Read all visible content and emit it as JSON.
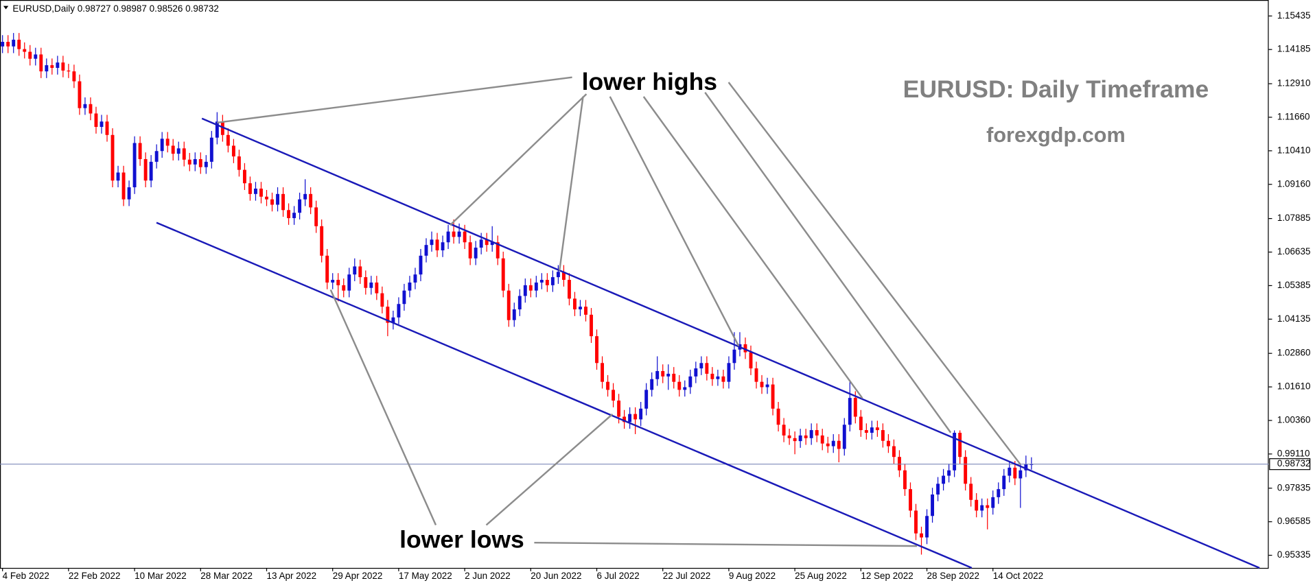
{
  "chart_data": {
    "type": "candlestick",
    "symbol": "EURUSD,Daily",
    "title": "EURUSD: Daily Timeframe",
    "subtitle": "forexgdp.com",
    "annotations": [
      "lower highs",
      "lower lows"
    ],
    "up_color": "#1010d0",
    "down_color": "#ff0000",
    "grid": false,
    "ylim": [
      0.94865,
      1.1603
    ],
    "yticks": [
      1.15435,
      1.14185,
      {
        "value": 1.1291,
        "label": "1.12910"
      },
      {
        "value": 1.1166,
        "label": "1.11660"
      },
      {
        "value": 1.1041,
        "label": "1.10410"
      },
      {
        "value": 1.0916,
        "label": "1.09160"
      },
      1.07885,
      1.06635,
      1.05385,
      1.04135,
      {
        "value": 1.0286,
        "label": "1.02860"
      },
      {
        "value": 1.0161,
        "label": "1.01610"
      },
      {
        "value": 1.0036,
        "label": "1.00360"
      },
      {
        "value": 0.9911,
        "label": "0.99110"
      },
      0.97835,
      0.96585,
      0.95335
    ],
    "categories": [
      "4 Feb 2022",
      null,
      null,
      null,
      null,
      null,
      null,
      null,
      null,
      null,
      null,
      null,
      "22 Feb 2022",
      null,
      null,
      null,
      null,
      null,
      null,
      null,
      null,
      null,
      null,
      null,
      "10 Mar 2022",
      null,
      null,
      null,
      null,
      null,
      null,
      null,
      null,
      null,
      null,
      null,
      "28 Mar 2022",
      null,
      null,
      null,
      null,
      null,
      null,
      null,
      null,
      null,
      null,
      null,
      "13 Apr 2022",
      null,
      null,
      null,
      null,
      null,
      null,
      null,
      null,
      null,
      null,
      null,
      "29 Apr 2022",
      null,
      null,
      null,
      null,
      null,
      null,
      null,
      null,
      null,
      null,
      null,
      "17 May 2022",
      null,
      null,
      null,
      null,
      null,
      null,
      null,
      null,
      null,
      null,
      null,
      "2 Jun 2022",
      null,
      null,
      null,
      null,
      null,
      null,
      null,
      null,
      null,
      null,
      null,
      "20 Jun 2022",
      null,
      null,
      null,
      null,
      null,
      null,
      null,
      null,
      null,
      null,
      null,
      "6 Jul 2022",
      null,
      null,
      null,
      null,
      null,
      null,
      null,
      null,
      null,
      null,
      null,
      "22 Jul 2022",
      null,
      null,
      null,
      null,
      null,
      null,
      null,
      null,
      null,
      null,
      null,
      "9 Aug 2022",
      null,
      null,
      null,
      null,
      null,
      null,
      null,
      null,
      null,
      null,
      null,
      "25 Aug 2022",
      null,
      null,
      null,
      null,
      null,
      null,
      null,
      null,
      null,
      null,
      null,
      "12 Sep 2022",
      null,
      null,
      null,
      null,
      null,
      null,
      null,
      null,
      null,
      null,
      null,
      "28 Sep 2022",
      null,
      null,
      null,
      null,
      null,
      null,
      null,
      null,
      null,
      null,
      null,
      "14 Oct 2022",
      null,
      null,
      null,
      null,
      null,
      null,
      null
    ],
    "candles": [
      [
        1.143,
        1.1472,
        1.1405,
        1.1447
      ],
      [
        1.1447,
        1.1472,
        1.1405,
        1.143
      ],
      [
        1.143,
        1.148,
        1.1405,
        1.1455
      ],
      [
        1.1455,
        1.148,
        1.1395,
        1.142
      ],
      [
        1.142,
        1.1445,
        1.1385,
        1.141
      ],
      [
        1.141,
        1.1435,
        1.1359,
        1.1384
      ],
      [
        1.1384,
        1.1425,
        1.1359,
        1.14
      ],
      [
        1.14,
        1.1425,
        1.1312,
        1.1337
      ],
      [
        1.1337,
        1.1385,
        1.1312,
        1.136
      ],
      [
        1.136,
        1.1385,
        1.1325,
        1.135
      ],
      [
        1.135,
        1.1395,
        1.1325,
        1.137
      ],
      [
        1.137,
        1.1395,
        1.1315,
        1.134
      ],
      [
        1.134,
        1.1365,
        1.1312,
        1.1337
      ],
      [
        1.1337,
        1.1362,
        1.1275,
        1.13
      ],
      [
        1.13,
        1.1325,
        1.1175,
        1.12
      ],
      [
        1.12,
        1.124,
        1.1175,
        1.1215
      ],
      [
        1.1215,
        1.124,
        1.1155,
        1.118
      ],
      [
        1.118,
        1.1205,
        1.1105,
        1.113
      ],
      [
        1.113,
        1.1175,
        1.1105,
        1.115
      ],
      [
        1.115,
        1.1175,
        1.1075,
        1.11
      ],
      [
        1.11,
        1.1125,
        1.0905,
        1.093
      ],
      [
        1.093,
        1.0985,
        1.0905,
        1.096
      ],
      [
        1.096,
        1.0985,
        1.0835,
        1.086
      ],
      [
        1.086,
        1.093,
        1.0835,
        1.0905
      ],
      [
        1.0905,
        1.1095,
        1.088,
        1.107
      ],
      [
        1.107,
        1.1095,
        1.0985,
        1.101
      ],
      [
        1.101,
        1.1035,
        1.0905,
        1.093
      ],
      [
        1.093,
        1.1025,
        1.0905,
        1.1
      ],
      [
        1.1,
        1.1065,
        1.0975,
        1.104
      ],
      [
        1.104,
        1.1111,
        1.1015,
        1.1086
      ],
      [
        1.1086,
        1.1111,
        1.1035,
        1.106
      ],
      [
        1.106,
        1.1085,
        1.1005,
        1.103
      ],
      [
        1.103,
        1.1075,
        1.1005,
        1.105
      ],
      [
        1.105,
        1.1075,
        1.0983,
        1.1008
      ],
      [
        1.1008,
        1.1033,
        1.0965,
        1.099
      ],
      [
        1.099,
        1.1035,
        1.0965,
        1.101
      ],
      [
        1.101,
        1.1035,
        1.0955,
        1.098
      ],
      [
        1.098,
        1.1025,
        1.0955,
        1.1
      ],
      [
        1.1,
        1.1115,
        1.0975,
        1.109
      ],
      [
        1.109,
        1.1185,
        1.1065,
        1.115
      ],
      [
        1.115,
        1.1175,
        1.1075,
        1.11
      ],
      [
        1.11,
        1.1125,
        1.1035,
        1.106
      ],
      [
        1.106,
        1.1085,
        1.0995,
        1.102
      ],
      [
        1.102,
        1.1045,
        1.0945,
        1.097
      ],
      [
        1.097,
        1.0995,
        1.0895,
        1.092
      ],
      [
        1.092,
        1.0945,
        1.0855,
        1.088
      ],
      [
        1.088,
        1.0925,
        1.0855,
        1.09
      ],
      [
        1.09,
        1.0925,
        1.0845,
        1.087
      ],
      [
        1.087,
        1.0895,
        1.0835,
        1.086
      ],
      [
        1.086,
        1.0885,
        1.0815,
        1.084
      ],
      [
        1.084,
        1.0905,
        1.0815,
        1.088
      ],
      [
        1.088,
        1.0905,
        1.0795,
        1.082
      ],
      [
        1.082,
        1.0845,
        1.0765,
        1.079
      ],
      [
        1.079,
        1.0835,
        1.0765,
        1.081
      ],
      [
        1.081,
        1.0885,
        1.0785,
        1.086
      ],
      [
        1.086,
        1.0935,
        1.0835,
        1.088
      ],
      [
        1.088,
        1.0905,
        1.0805,
        1.083
      ],
      [
        1.083,
        1.0855,
        1.0735,
        1.076
      ],
      [
        1.076,
        1.0785,
        1.0625,
        1.065
      ],
      [
        1.065,
        1.0675,
        1.0525,
        1.055
      ],
      [
        1.055,
        1.0585,
        1.0525,
        1.056
      ],
      [
        1.056,
        1.0585,
        1.048,
        1.054
      ],
      [
        1.054,
        1.0565,
        1.0495,
        1.052
      ],
      [
        1.052,
        1.0605,
        1.0495,
        1.058
      ],
      [
        1.058,
        1.064,
        1.0555,
        1.061
      ],
      [
        1.061,
        1.0635,
        1.0545,
        1.057
      ],
      [
        1.057,
        1.0595,
        1.0505,
        1.053
      ],
      [
        1.053,
        1.0575,
        1.0505,
        1.055
      ],
      [
        1.055,
        1.0575,
        1.0485,
        1.051
      ],
      [
        1.051,
        1.0535,
        1.0435,
        1.046
      ],
      [
        1.046,
        1.0485,
        1.035,
        1.04
      ],
      [
        1.04,
        1.0445,
        1.0375,
        1.042
      ],
      [
        1.042,
        1.0495,
        1.0395,
        1.047
      ],
      [
        1.047,
        1.0545,
        1.0445,
        1.052
      ],
      [
        1.052,
        1.0575,
        1.0495,
        1.055
      ],
      [
        1.055,
        1.0605,
        1.0525,
        1.058
      ],
      [
        1.058,
        1.0675,
        1.0555,
        1.065
      ],
      [
        1.065,
        1.0715,
        1.0625,
        1.069
      ],
      [
        1.069,
        1.074,
        1.0665,
        1.071
      ],
      [
        1.071,
        1.0735,
        1.0645,
        1.067
      ],
      [
        1.067,
        1.0725,
        1.0645,
        1.07
      ],
      [
        1.07,
        1.0765,
        1.0675,
        1.074
      ],
      [
        1.074,
        1.0785,
        1.0695,
        1.072
      ],
      [
        1.072,
        1.077,
        1.0695,
        1.074
      ],
      [
        1.074,
        1.0765,
        1.0675,
        1.07
      ],
      [
        1.07,
        1.0725,
        1.0615,
        1.064
      ],
      [
        1.064,
        1.0705,
        1.0615,
        1.068
      ],
      [
        1.068,
        1.0735,
        1.0655,
        1.071
      ],
      [
        1.071,
        1.0735,
        1.0665,
        1.069
      ],
      [
        1.069,
        1.076,
        1.0665,
        1.07
      ],
      [
        1.07,
        1.0725,
        1.0615,
        1.064
      ],
      [
        1.064,
        1.0665,
        1.0495,
        1.052
      ],
      [
        1.052,
        1.0545,
        1.0385,
        1.041
      ],
      [
        1.041,
        1.0475,
        1.0385,
        1.045
      ],
      [
        1.045,
        1.0525,
        1.0425,
        1.05
      ],
      [
        1.05,
        1.0565,
        1.0475,
        1.054
      ],
      [
        1.054,
        1.0565,
        1.0495,
        1.052
      ],
      [
        1.052,
        1.0575,
        1.0495,
        1.055
      ],
      [
        1.055,
        1.0585,
        1.0525,
        1.056
      ],
      [
        1.056,
        1.0585,
        1.0515,
        1.054
      ],
      [
        1.054,
        1.0595,
        1.0515,
        1.057
      ],
      [
        1.057,
        1.0615,
        1.0545,
        1.059
      ],
      [
        1.059,
        1.0615,
        1.0535,
        1.056
      ],
      [
        1.056,
        1.0585,
        1.0465,
        1.049
      ],
      [
        1.049,
        1.0515,
        1.0425,
        1.045
      ],
      [
        1.045,
        1.0485,
        1.0425,
        1.046
      ],
      [
        1.046,
        1.0485,
        1.0405,
        1.043
      ],
      [
        1.043,
        1.0455,
        1.0325,
        1.035
      ],
      [
        1.035,
        1.0375,
        1.0225,
        1.025
      ],
      [
        1.025,
        1.0275,
        1.0155,
        1.018
      ],
      [
        1.018,
        1.0205,
        1.0125,
        1.015
      ],
      [
        1.015,
        1.0175,
        1.0085,
        1.011
      ],
      [
        1.011,
        1.0135,
        1.0025,
        1.005
      ],
      [
        1.005,
        1.0075,
        1.0005,
        1.003
      ],
      [
        1.003,
        1.0085,
        1.0005,
        1.006
      ],
      [
        1.006,
        1.0085,
        0.9985,
        1.004
      ],
      [
        1.004,
        1.0105,
        1.0015,
        1.008
      ],
      [
        1.008,
        1.0175,
        1.0055,
        1.015
      ],
      [
        1.015,
        1.0215,
        1.0125,
        1.019
      ],
      [
        1.019,
        1.0275,
        1.0165,
        1.022
      ],
      [
        1.022,
        1.0245,
        1.0175,
        1.02
      ],
      [
        1.02,
        1.0245,
        1.015,
        1.021
      ],
      [
        1.021,
        1.0235,
        1.0155,
        1.018
      ],
      [
        1.018,
        1.0205,
        1.0125,
        1.015
      ],
      [
        1.015,
        1.0185,
        1.0125,
        1.016
      ],
      [
        1.016,
        1.0225,
        1.0135,
        1.02
      ],
      [
        1.02,
        1.0255,
        1.0175,
        1.023
      ],
      [
        1.023,
        1.0275,
        1.0205,
        1.025
      ],
      [
        1.025,
        1.0275,
        1.0185,
        1.021
      ],
      [
        1.021,
        1.0235,
        1.0165,
        1.019
      ],
      [
        1.019,
        1.0225,
        1.0165,
        1.02
      ],
      [
        1.02,
        1.0225,
        1.0155,
        1.018
      ],
      [
        1.018,
        1.0275,
        1.0155,
        1.025
      ],
      [
        1.025,
        1.0365,
        1.0225,
        1.03
      ],
      [
        1.03,
        1.0365,
        1.0275,
        1.032
      ],
      [
        1.032,
        1.0345,
        1.0265,
        1.029
      ],
      [
        1.029,
        1.0315,
        1.0205,
        1.023
      ],
      [
        1.023,
        1.0255,
        1.0155,
        1.018
      ],
      [
        1.018,
        1.0205,
        1.0135,
        1.016
      ],
      [
        1.016,
        1.0195,
        1.0135,
        1.017
      ],
      [
        1.017,
        1.0195,
        1.0055,
        1.008
      ],
      [
        1.008,
        1.0105,
        0.9995,
        1.002
      ],
      [
        1.002,
        1.0045,
        0.9955,
        0.998
      ],
      [
        0.998,
        1.0005,
        0.9945,
        0.997
      ],
      [
        0.997,
        0.9995,
        0.991,
        0.9959
      ],
      [
        0.9959,
        1.0005,
        0.9934,
        0.998
      ],
      [
        0.998,
        1.0005,
        0.9945,
        0.997
      ],
      [
        0.997,
        1.0025,
        0.9945,
        1.0
      ],
      [
        1.0,
        1.0025,
        0.9955,
        0.998
      ],
      [
        0.998,
        1.0005,
        0.9925,
        0.995
      ],
      [
        0.995,
        0.9975,
        0.9915,
        0.994
      ],
      [
        0.994,
        0.9985,
        0.9915,
        0.996
      ],
      [
        0.996,
        0.9985,
        0.988,
        0.993
      ],
      [
        0.993,
        1.0045,
        0.9905,
        1.002
      ],
      [
        1.002,
        1.0185,
        0.9995,
        1.012
      ],
      [
        1.012,
        1.0145,
        1.0025,
        1.005
      ],
      [
        1.005,
        1.0075,
        0.9975,
        1.0
      ],
      [
        1.0,
        1.0025,
        0.9965,
        0.999
      ],
      [
        0.999,
        1.0035,
        0.9965,
        1.001
      ],
      [
        1.001,
        1.0035,
        0.9975,
        1.0
      ],
      [
        1.0,
        1.0025,
        0.9935,
        0.996
      ],
      [
        0.996,
        0.9985,
        0.9915,
        0.994
      ],
      [
        0.994,
        0.9965,
        0.9875,
        0.99
      ],
      [
        0.99,
        0.9925,
        0.9825,
        0.985
      ],
      [
        0.985,
        0.9875,
        0.9755,
        0.978
      ],
      [
        0.978,
        0.9805,
        0.9675,
        0.97
      ],
      [
        0.97,
        0.9725,
        0.959,
        0.9615
      ],
      [
        0.9615,
        0.964,
        0.9536,
        0.96
      ],
      [
        0.96,
        0.9705,
        0.9575,
        0.968
      ],
      [
        0.968,
        0.9785,
        0.9655,
        0.976
      ],
      [
        0.976,
        0.9825,
        0.9735,
        0.98
      ],
      [
        0.98,
        0.9855,
        0.9775,
        0.983
      ],
      [
        0.983,
        0.9875,
        0.9805,
        0.985
      ],
      [
        0.985,
        0.9999,
        0.9825,
        0.999
      ],
      [
        0.999,
        0.9999,
        0.9875,
        0.99
      ],
      [
        0.99,
        0.9925,
        0.9775,
        0.98
      ],
      [
        0.98,
        0.9825,
        0.9715,
        0.974
      ],
      [
        0.974,
        0.9765,
        0.9675,
        0.97
      ],
      [
        0.97,
        0.9745,
        0.9675,
        0.972
      ],
      [
        0.972,
        0.9745,
        0.963,
        0.971
      ],
      [
        0.971,
        0.9775,
        0.9685,
        0.975
      ],
      [
        0.975,
        0.9805,
        0.9725,
        0.978
      ],
      [
        0.978,
        0.9855,
        0.9755,
        0.983
      ],
      [
        0.983,
        0.9885,
        0.9805,
        0.986
      ],
      [
        0.986,
        0.9885,
        0.9795,
        0.982
      ],
      [
        0.982,
        0.9875,
        0.971,
        0.985
      ],
      [
        0.985,
        0.9905,
        0.9825,
        0.98727
      ],
      [
        0.98727,
        0.98987,
        0.98526,
        0.98732
      ]
    ]
  }
}
